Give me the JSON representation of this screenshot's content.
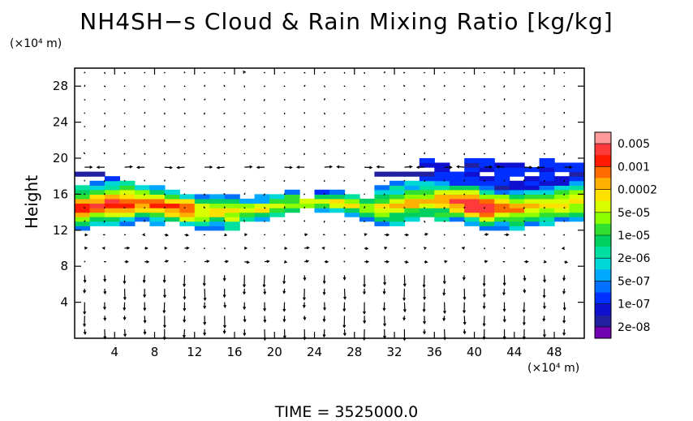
{
  "title": "NH4SH−s Cloud & Rain Mixing Ratio [kg/kg]",
  "time_label": "TIME  =  3525000.0",
  "chart_data": {
    "type": "heatmap",
    "title": "NH4SH−s Cloud & Rain Mixing Ratio [kg/kg]",
    "xlabel": "",
    "ylabel": "Height",
    "x_unit_label": "(×10⁴ m)",
    "y_unit_label": "(×10⁴ m)",
    "xlim": [
      0,
      51
    ],
    "ylim": [
      0,
      30
    ],
    "x_ticks": [
      4,
      8,
      12,
      16,
      20,
      24,
      28,
      32,
      36,
      40,
      44,
      48
    ],
    "y_ticks": [
      4,
      8,
      12,
      16,
      20,
      24,
      28
    ],
    "colorbar": {
      "labels": [
        "0.005",
        "0.001",
        "0.0002",
        "5e-05",
        "1e-05",
        "2e-06",
        "5e-07",
        "1e-07",
        "2e-08"
      ],
      "colors": [
        "#ff9a9a",
        "#ff3a3a",
        "#ff1a00",
        "#ff6a00",
        "#ffb000",
        "#ffe000",
        "#d8ff00",
        "#8cff00",
        "#30e030",
        "#00d060",
        "#00e0a0",
        "#00d8d8",
        "#00a8ff",
        "#0070ff",
        "#0030ff",
        "#1010d0",
        "#2020a0",
        "#7000b0"
      ]
    },
    "cloud_layers": [
      {
        "x_range": [
          0,
          29
        ],
        "z_bottom": 12.5,
        "z_top": 17,
        "peak_value": "0.0002"
      },
      {
        "x_range": [
          30,
          51
        ],
        "z_bottom": 12,
        "z_top": 17.5,
        "peak_value": "0.001"
      },
      {
        "x_range": [
          35,
          51
        ],
        "z_bottom": 16,
        "z_top": 19.5,
        "peak_value": "1e-07"
      }
    ],
    "grid": false,
    "legend": "right colorbar",
    "vectors": "wind arrows overlay"
  }
}
